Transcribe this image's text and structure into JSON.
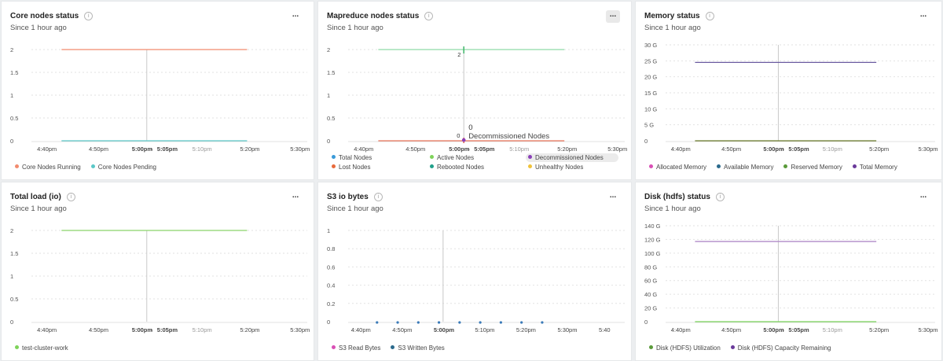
{
  "panels": [
    {
      "title": "Core nodes status",
      "subtitle": "Since 1 hour ago",
      "menu": "...",
      "yticks": [
        "2",
        "1.5",
        "1",
        "0.5",
        "0"
      ],
      "xticks": [
        "4:40pm",
        "4:50pm",
        "5:00pm",
        "-",
        "5:05pm",
        "5:10pm",
        "5:20pm",
        "5:30pm"
      ],
      "legend": [
        {
          "name": "Core Nodes Running",
          "color": "#f28b6e"
        },
        {
          "name": "Core Nodes Pending",
          "color": "#5bc8c8"
        }
      ],
      "chart_data": {
        "type": "line",
        "x_range": [
          "4:40pm",
          "5:30pm"
        ],
        "ylim": [
          0,
          2
        ],
        "series": [
          {
            "name": "Core Nodes Running",
            "x": [
              "4:43pm",
              "5:20pm"
            ],
            "values": [
              2,
              2
            ],
            "color": "#f28b6e"
          },
          {
            "name": "Core Nodes Pending",
            "x": [
              "4:43pm",
              "5:20pm"
            ],
            "values": [
              0,
              0
            ],
            "color": "#5bc8c8"
          }
        ]
      }
    },
    {
      "title": "Mapreduce nodes status",
      "subtitle": "Since 1 hour ago",
      "menu": "...",
      "menu_active": true,
      "yticks": [
        "2",
        "1.5",
        "1",
        "0.5",
        "0"
      ],
      "xticks": [
        "4:40pm",
        "4:50pm",
        "5:00pm",
        "-",
        "5:05pm",
        "5:10pm",
        "5:20pm",
        "5:30pm"
      ],
      "tooltip": {
        "value": "0",
        "series": "Decommissioned Nodes",
        "top_label": "2",
        "bottom_label": "0"
      },
      "legend": [
        {
          "name": "Total Nodes",
          "color": "#3a9ad9"
        },
        {
          "name": "Active Nodes",
          "color": "#7ed35a"
        },
        {
          "name": "Decommissioned Nodes",
          "color": "#8a3fb8",
          "highlight": true
        },
        {
          "name": "Lost Nodes",
          "color": "#e86a3c"
        },
        {
          "name": "Rebooted Nodes",
          "color": "#21a08a"
        },
        {
          "name": "Unhealthy Nodes",
          "color": "#f0c23a"
        }
      ],
      "chart_data": {
        "type": "line",
        "x_range": [
          "4:40pm",
          "5:30pm"
        ],
        "ylim": [
          0,
          2
        ],
        "series": [
          {
            "name": "Active Nodes",
            "x": [
              "4:43pm",
              "5:20pm"
            ],
            "values": [
              2,
              2
            ],
            "color": "#8fd9a8"
          },
          {
            "name": "Lost Nodes",
            "x": [
              "4:43pm",
              "5:20pm"
            ],
            "values": [
              0,
              0
            ],
            "color": "#e8735a"
          }
        ]
      }
    },
    {
      "title": "Memory status",
      "subtitle": "Since 1 hour ago",
      "menu": "...",
      "yticks": [
        "30 G",
        "25 G",
        "20 G",
        "15 G",
        "10 G",
        "5 G",
        "0"
      ],
      "xticks": [
        "4:40pm",
        "4:50pm",
        "5:00pm",
        "-",
        "5:05pm",
        "5:10pm",
        "5:20pm",
        "5:30pm"
      ],
      "legend": [
        {
          "name": "Allocated Memory",
          "color": "#d94fb5"
        },
        {
          "name": "Available Memory",
          "color": "#2b6a8c"
        },
        {
          "name": "Reserved Memory",
          "color": "#5a9a3a"
        },
        {
          "name": "Total Memory",
          "color": "#6a3a9a"
        }
      ],
      "chart_data": {
        "type": "line",
        "x_range": [
          "4:40pm",
          "5:30pm"
        ],
        "ylim": [
          0,
          30
        ],
        "series": [
          {
            "name": "Total Memory",
            "x": [
              "4:43pm",
              "5:20pm"
            ],
            "values": [
              24.5,
              24.5
            ],
            "color": "#6a5aa0"
          },
          {
            "name": "Reserved Memory",
            "x": [
              "4:43pm",
              "5:20pm"
            ],
            "values": [
              0,
              0
            ],
            "color": "#6a7a2a"
          }
        ]
      }
    },
    {
      "title": "Total load (io)",
      "subtitle": "Since 1 hour ago",
      "menu": "...",
      "yticks": [
        "2",
        "1.5",
        "1",
        "0.5",
        "0"
      ],
      "xticks": [
        "4:40pm",
        "4:50pm",
        "5:00pm",
        "-",
        "5:05pm",
        "5:10pm",
        "5:20pm",
        "5:30pm"
      ],
      "legend": [
        {
          "name": "test-cluster-work",
          "color": "#7ed35a"
        }
      ],
      "chart_data": {
        "type": "line",
        "x_range": [
          "4:40pm",
          "5:30pm"
        ],
        "ylim": [
          0,
          2
        ],
        "series": [
          {
            "name": "test-cluster-work",
            "x": [
              "4:43pm",
              "5:20pm"
            ],
            "values": [
              2,
              2
            ],
            "color": "#8ad36a"
          }
        ]
      }
    },
    {
      "title": "S3 io bytes",
      "subtitle": "Since 1 hour ago",
      "menu": "...",
      "yticks": [
        "1",
        "0.8",
        "0.6",
        "0.4",
        "0.2",
        "0"
      ],
      "xticks": [
        "4:40pm",
        "4:50pm",
        "5:00pm",
        "5:10pm",
        "5:20pm",
        "5:30pm",
        "5:40"
      ],
      "legend": [
        {
          "name": "S3 Read Bytes",
          "color": "#d94fb5"
        },
        {
          "name": "S3 Written Bytes",
          "color": "#2b6a8c"
        }
      ],
      "chart_data": {
        "type": "scatter",
        "x_range": [
          "4:40pm",
          "5:40pm"
        ],
        "ylim": [
          0,
          1
        ],
        "series": [
          {
            "name": "S3 Written Bytes",
            "x": [
              "4:44pm",
              "4:49pm",
              "4:54pm",
              "4:59pm",
              "5:04pm",
              "5:09pm",
              "5:14pm",
              "5:19pm",
              "5:24pm"
            ],
            "values": [
              0,
              0,
              0,
              0,
              0,
              0,
              0,
              0,
              0
            ],
            "color": "#3a7ab8"
          }
        ]
      }
    },
    {
      "title": "Disk (hdfs) status",
      "subtitle": "Since 1 hour ago",
      "menu": "...",
      "yticks": [
        "140 G",
        "120 G",
        "100 G",
        "80 G",
        "60 G",
        "40 G",
        "20 G",
        "0"
      ],
      "xticks": [
        "4:40pm",
        "4:50pm",
        "5:00pm",
        "-",
        "5:05pm",
        "5:10pm",
        "5:20pm",
        "5:30pm"
      ],
      "legend": [
        {
          "name": "Disk (HDFS) Utilization",
          "color": "#5a9a3a"
        },
        {
          "name": "Disk (HDFS) Capacity Remaining",
          "color": "#6a3a9a"
        }
      ],
      "chart_data": {
        "type": "line",
        "x_range": [
          "4:40pm",
          "5:30pm"
        ],
        "ylim": [
          0,
          140
        ],
        "series": [
          {
            "name": "Disk (HDFS) Capacity Remaining",
            "x": [
              "4:43pm",
              "5:20pm"
            ],
            "values": [
              117,
              117
            ],
            "color": "#b08ac8"
          },
          {
            "name": "Disk (HDFS) Utilization",
            "x": [
              "4:43pm",
              "5:20pm"
            ],
            "values": [
              0,
              0
            ],
            "color": "#7ad35a"
          }
        ]
      }
    }
  ]
}
